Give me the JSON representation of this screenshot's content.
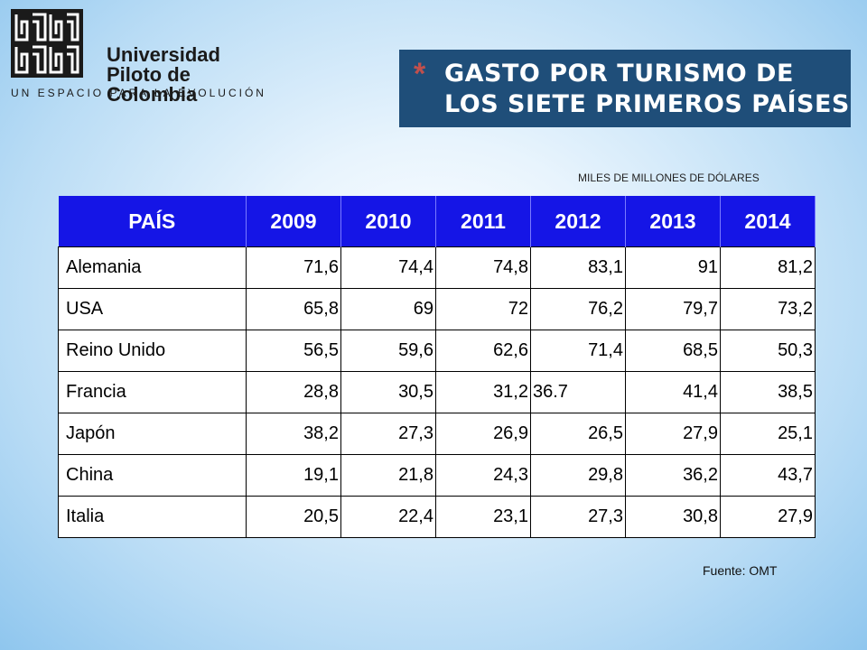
{
  "logo": {
    "line1": "Universidad",
    "line2": "Piloto de Colombia",
    "tagline": "UN ESPACIO PARA LA EVOLUCIÓN"
  },
  "title": {
    "bullet": "*",
    "line1": "GASTO POR TURISMO DE",
    "line2": "LOS SIETE PRIMEROS PAÍSES"
  },
  "units": "MILES DE MILLONES DE DÓLARES",
  "table": {
    "headers": [
      "PAÍS",
      "2009",
      "2010",
      "2011",
      "2012",
      "2013",
      "2014"
    ],
    "rows": [
      [
        "Alemania",
        "71,6",
        "74,4",
        "74,8",
        "83,1",
        "91",
        "81,2"
      ],
      [
        "USA",
        "65,8",
        "69",
        "72",
        "76,2",
        "79,7",
        "73,2"
      ],
      [
        "Reino Unido",
        "56,5",
        "59,6",
        "62,6",
        "71,4",
        "68,5",
        "50,3"
      ],
      [
        "Francia",
        "28,8",
        "30,5",
        "31,2",
        "36.7",
        "41,4",
        "38,5"
      ],
      [
        "Japón",
        "38,2",
        "27,3",
        "26,9",
        "26,5",
        "27,9",
        "25,1"
      ],
      [
        "China",
        "19,1",
        "21,8",
        "24,3",
        "29,8",
        "36,2",
        "43,7"
      ],
      [
        "Italia",
        "20,5",
        "22,4",
        "23,1",
        "27,3",
        "30,8",
        "27,9"
      ]
    ]
  },
  "source": "Fuente: OMT",
  "colors": {
    "header_bg": "#1515e6",
    "title_bg": "#1f4e79",
    "bullet": "#c0504d"
  }
}
